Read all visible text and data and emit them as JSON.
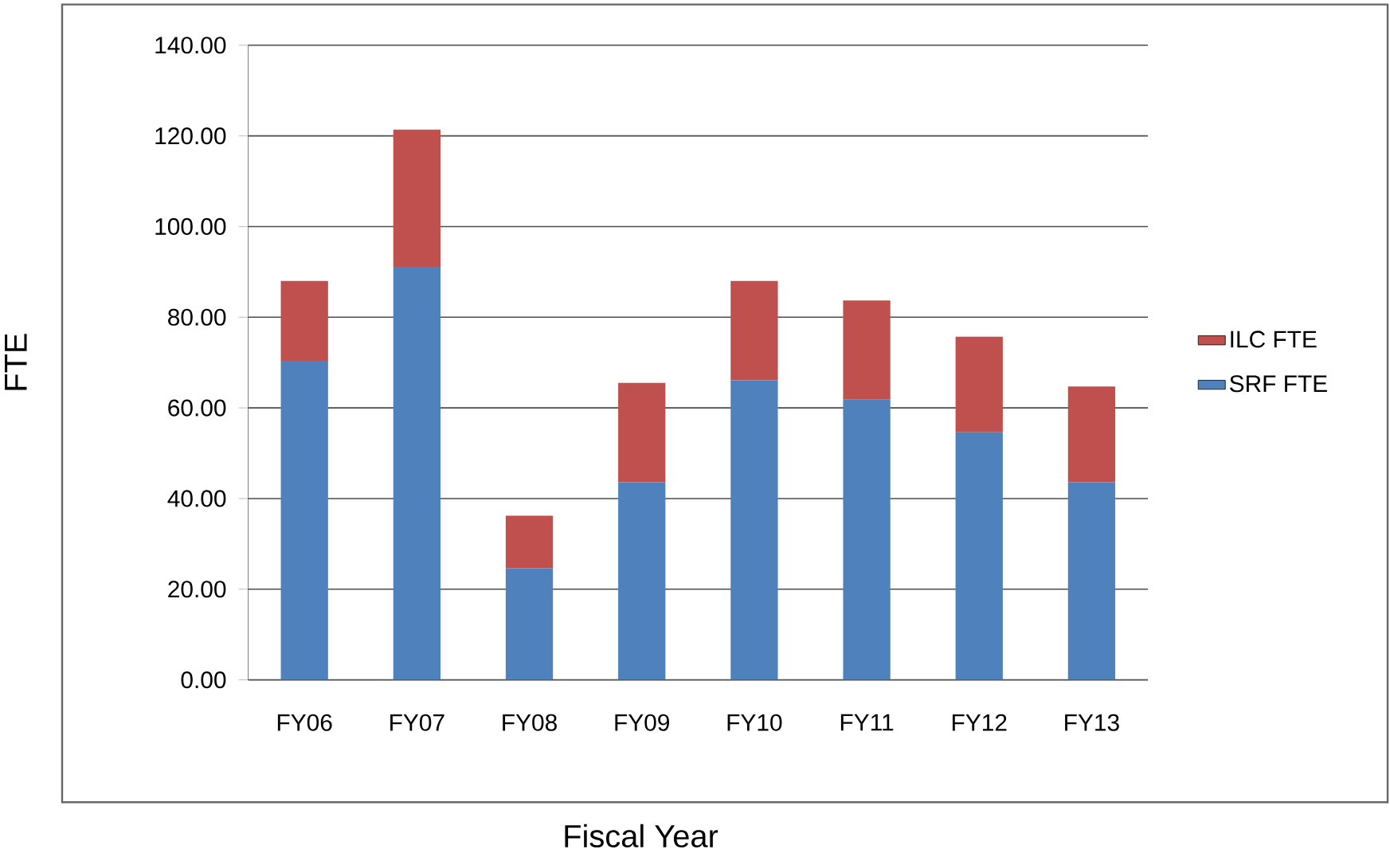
{
  "chart_data": {
    "type": "bar",
    "stacked": true,
    "xlabel": "Fiscal Year",
    "ylabel": "FTE",
    "categories": [
      "FY06",
      "FY07",
      "FY08",
      "FY09",
      "FY10",
      "FY11",
      "FY12",
      "FY13"
    ],
    "series": [
      {
        "name": "SRF FTE",
        "color": "#4f81bd",
        "values": [
          70.4,
          91.1,
          24.6,
          43.6,
          66.1,
          61.8,
          54.6,
          43.6
        ]
      },
      {
        "name": "ILC FTE",
        "color": "#c0504d",
        "values": [
          17.6,
          30.3,
          11.6,
          21.9,
          21.9,
          21.9,
          21.1,
          21.1
        ]
      }
    ],
    "ylim": [
      0,
      140
    ],
    "yticks": [
      {
        "value": 0,
        "label": "0.00"
      },
      {
        "value": 20,
        "label": "20.00"
      },
      {
        "value": 40,
        "label": "40.00"
      },
      {
        "value": 60,
        "label": "60.00"
      },
      {
        "value": 80,
        "label": "80.00"
      },
      {
        "value": 100,
        "label": "100.00"
      },
      {
        "value": 120,
        "label": "120.00"
      },
      {
        "value": 140,
        "label": "140.00"
      }
    ],
    "grid": "y",
    "legend": "right"
  }
}
